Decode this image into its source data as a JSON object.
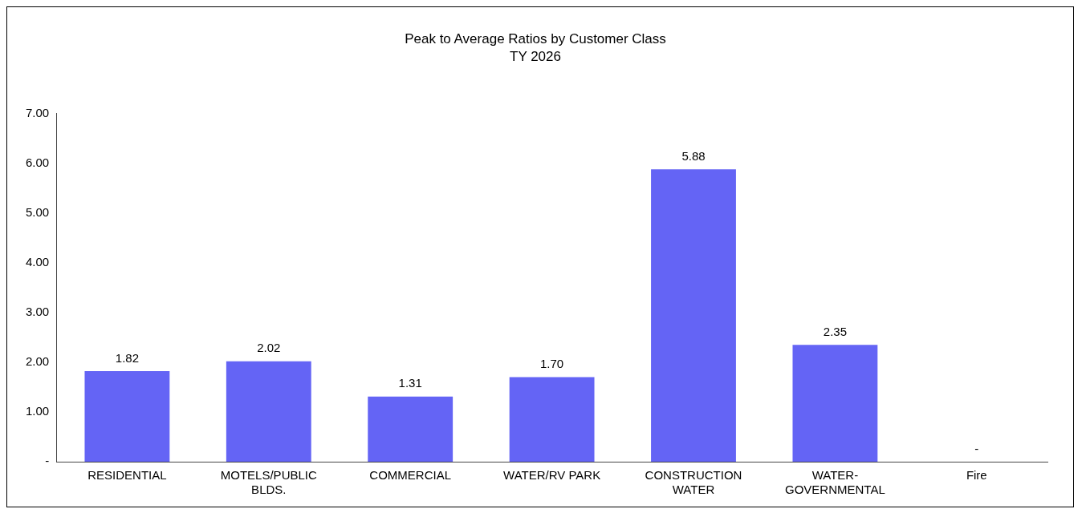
{
  "chart_data": {
    "type": "bar",
    "title": "Peak to Average Ratios by Customer Class",
    "subtitle": "TY 2026",
    "categories": [
      "RESIDENTIAL",
      "MOTELS/PUBLIC BLDS.",
      "COMMERCIAL",
      "WATER/RV PARK",
      "CONSTRUCTION WATER",
      "WATER-GOVERNMENTAL",
      "Fire"
    ],
    "values": [
      1.82,
      2.02,
      1.31,
      1.7,
      5.88,
      2.35,
      0
    ],
    "value_labels": [
      "1.82",
      "2.02",
      "1.31",
      "1.70",
      "5.88",
      "2.35",
      "-"
    ],
    "color": "#6464f5",
    "ylim": [
      0,
      7
    ],
    "yticks": [
      {
        "value": 0,
        "label": "-"
      },
      {
        "value": 1,
        "label": "1.00"
      },
      {
        "value": 2,
        "label": "2.00"
      },
      {
        "value": 3,
        "label": "3.00"
      },
      {
        "value": 4,
        "label": "4.00"
      },
      {
        "value": 5,
        "label": "5.00"
      },
      {
        "value": 6,
        "label": "6.00"
      },
      {
        "value": 7,
        "label": "7.00"
      }
    ],
    "grid": false,
    "legend": false
  }
}
